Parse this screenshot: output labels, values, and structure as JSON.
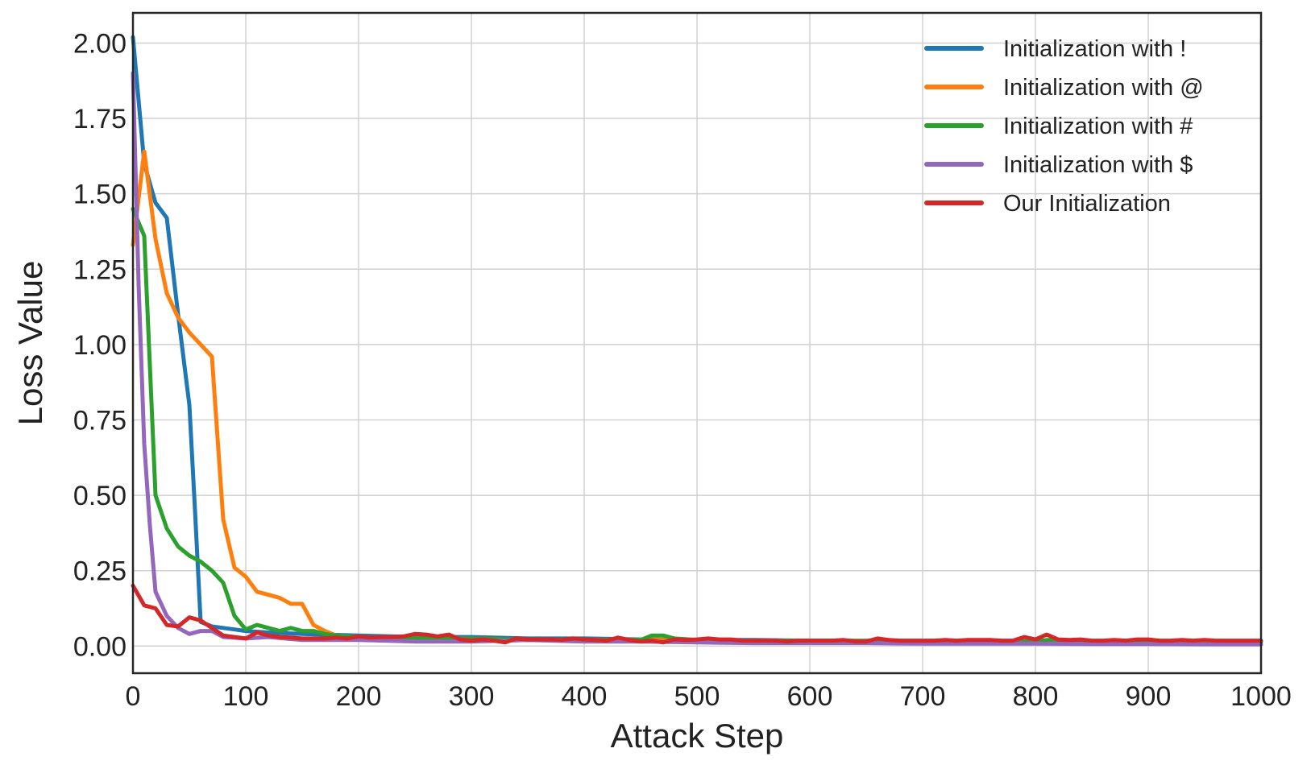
{
  "chart_data": {
    "type": "line",
    "title": "",
    "xlabel": "Attack Step",
    "ylabel": "Loss Value",
    "xlim": [
      0,
      1000
    ],
    "ylim": [
      -0.09,
      2.1
    ],
    "xticks": [
      0,
      100,
      200,
      300,
      400,
      500,
      600,
      700,
      800,
      900,
      1000
    ],
    "xtick_labels": [
      "0",
      "100",
      "200",
      "300",
      "400",
      "500",
      "600",
      "700",
      "800",
      "900",
      "1000"
    ],
    "yticks": [
      0,
      0.25,
      0.5,
      0.75,
      1.0,
      1.25,
      1.5,
      1.75,
      2.0
    ],
    "ytick_labels": [
      "0.00",
      "0.25",
      "0.50",
      "0.75",
      "1.00",
      "1.25",
      "1.50",
      "1.75",
      "2.00"
    ],
    "grid": true,
    "legend_position": "top-right",
    "series": [
      {
        "name": "Initialization with !",
        "color": "#1f77b4",
        "x": [
          0,
          10,
          20,
          30,
          40,
          50,
          55,
          60,
          70,
          80,
          90,
          100,
          120,
          150,
          200,
          250,
          300,
          350,
          400,
          450,
          500,
          550,
          600,
          650,
          700,
          750,
          800,
          850,
          900,
          950,
          1000
        ],
        "y": [
          2.02,
          1.6,
          1.47,
          1.42,
          1.1,
          0.8,
          0.45,
          0.08,
          0.065,
          0.06,
          0.055,
          0.05,
          0.045,
          0.04,
          0.035,
          0.03,
          0.03,
          0.025,
          0.025,
          0.022,
          0.02,
          0.02,
          0.018,
          0.018,
          0.017,
          0.016,
          0.016,
          0.015,
          0.015,
          0.015,
          0.015
        ]
      },
      {
        "name": "Initialization with @",
        "color": "#ff7f0e",
        "x": [
          0,
          10,
          20,
          30,
          40,
          50,
          60,
          70,
          80,
          90,
          100,
          110,
          120,
          130,
          140,
          150,
          160,
          170,
          180,
          200,
          250,
          300,
          350,
          400,
          450,
          500,
          550,
          600,
          650,
          700,
          750,
          800,
          850,
          900,
          950,
          1000
        ],
        "y": [
          1.33,
          1.64,
          1.35,
          1.17,
          1.09,
          1.04,
          1.0,
          0.96,
          0.42,
          0.26,
          0.23,
          0.18,
          0.17,
          0.16,
          0.14,
          0.14,
          0.07,
          0.05,
          0.035,
          0.03,
          0.025,
          0.025,
          0.02,
          0.02,
          0.02,
          0.02,
          0.018,
          0.018,
          0.017,
          0.016,
          0.016,
          0.015,
          0.015,
          0.015,
          0.015,
          0.015
        ]
      },
      {
        "name": "Initialization with #",
        "color": "#2ca02c",
        "x": [
          0,
          10,
          20,
          30,
          40,
          50,
          60,
          70,
          80,
          90,
          100,
          110,
          120,
          130,
          140,
          150,
          160,
          170,
          180,
          200,
          250,
          300,
          350,
          400,
          450,
          460,
          470,
          480,
          500,
          550,
          600,
          650,
          700,
          750,
          800,
          810,
          820,
          850,
          900,
          950,
          1000
        ],
        "y": [
          1.45,
          1.36,
          0.5,
          0.39,
          0.33,
          0.3,
          0.28,
          0.25,
          0.21,
          0.1,
          0.055,
          0.07,
          0.06,
          0.05,
          0.06,
          0.05,
          0.05,
          0.04,
          0.035,
          0.03,
          0.025,
          0.025,
          0.02,
          0.02,
          0.02,
          0.035,
          0.035,
          0.025,
          0.02,
          0.018,
          0.017,
          0.016,
          0.016,
          0.015,
          0.015,
          0.02,
          0.02,
          0.015,
          0.015,
          0.015,
          0.015
        ]
      },
      {
        "name": "Initialization with $",
        "color": "#9467bd",
        "x": [
          0,
          5,
          10,
          15,
          20,
          30,
          40,
          50,
          60,
          70,
          80,
          100,
          120,
          150,
          200,
          250,
          300,
          350,
          400,
          450,
          500,
          550,
          600,
          650,
          700,
          750,
          800,
          850,
          900,
          950,
          1000
        ],
        "y": [
          1.9,
          1.2,
          0.67,
          0.4,
          0.18,
          0.1,
          0.06,
          0.04,
          0.05,
          0.05,
          0.03,
          0.025,
          0.03,
          0.02,
          0.02,
          0.015,
          0.015,
          0.02,
          0.015,
          0.015,
          0.012,
          0.01,
          0.01,
          0.01,
          0.008,
          0.008,
          0.008,
          0.007,
          0.007,
          0.006,
          0.006
        ]
      },
      {
        "name": "Our Initialization",
        "color": "#d62728",
        "x": [
          0,
          10,
          20,
          30,
          40,
          50,
          60,
          70,
          80,
          90,
          100,
          110,
          120,
          130,
          140,
          150,
          160,
          170,
          180,
          190,
          200,
          210,
          220,
          230,
          240,
          250,
          260,
          270,
          280,
          290,
          300,
          310,
          320,
          330,
          340,
          350,
          360,
          370,
          380,
          390,
          400,
          410,
          420,
          430,
          440,
          450,
          460,
          470,
          480,
          490,
          500,
          510,
          520,
          530,
          540,
          550,
          560,
          570,
          580,
          590,
          600,
          610,
          620,
          630,
          640,
          650,
          660,
          670,
          680,
          690,
          700,
          710,
          720,
          730,
          740,
          750,
          760,
          770,
          780,
          790,
          800,
          810,
          820,
          830,
          840,
          850,
          860,
          870,
          880,
          890,
          900,
          910,
          920,
          930,
          940,
          950,
          960,
          970,
          980,
          990,
          1000
        ],
        "y": [
          0.2,
          0.135,
          0.125,
          0.07,
          0.065,
          0.095,
          0.085,
          0.06,
          0.035,
          0.03,
          0.025,
          0.045,
          0.035,
          0.03,
          0.028,
          0.025,
          0.025,
          0.025,
          0.028,
          0.025,
          0.032,
          0.028,
          0.03,
          0.03,
          0.032,
          0.04,
          0.038,
          0.032,
          0.038,
          0.022,
          0.018,
          0.022,
          0.018,
          0.012,
          0.025,
          0.022,
          0.022,
          0.022,
          0.02,
          0.025,
          0.022,
          0.02,
          0.018,
          0.028,
          0.02,
          0.015,
          0.018,
          0.012,
          0.022,
          0.02,
          0.022,
          0.025,
          0.022,
          0.022,
          0.018,
          0.018,
          0.018,
          0.018,
          0.015,
          0.018,
          0.018,
          0.018,
          0.018,
          0.02,
          0.015,
          0.015,
          0.025,
          0.02,
          0.018,
          0.018,
          0.018,
          0.018,
          0.02,
          0.018,
          0.02,
          0.02,
          0.02,
          0.018,
          0.018,
          0.03,
          0.022,
          0.038,
          0.022,
          0.02,
          0.022,
          0.018,
          0.018,
          0.02,
          0.018,
          0.022,
          0.022,
          0.018,
          0.018,
          0.02,
          0.018,
          0.02,
          0.018,
          0.018,
          0.018,
          0.018,
          0.018
        ]
      }
    ]
  }
}
